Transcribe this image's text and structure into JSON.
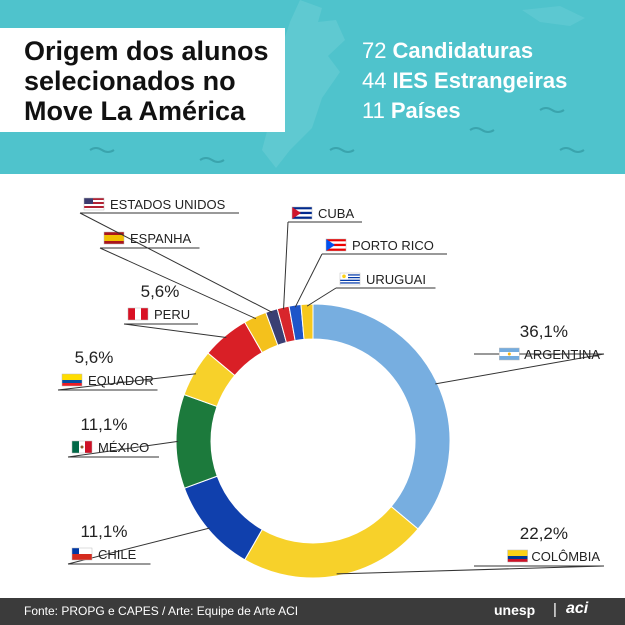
{
  "header": {
    "title_lines": [
      "Origem dos alunos",
      "selecionados no",
      "Move La América"
    ],
    "stats": [
      {
        "number": "72",
        "label": "Candidaturas"
      },
      {
        "number": "44",
        "label": "IES Estrangeiras"
      },
      {
        "number": "11",
        "label": "Países"
      }
    ]
  },
  "footer": {
    "source": "Fonte: PROPG e CAPES / Arte: Equipe de Arte ACI",
    "logo_unesp": "unesp",
    "logo_separator": "|",
    "logo_aci": "aci"
  },
  "chart_data": {
    "type": "pie",
    "style": "donut",
    "slices": [
      {
        "label": "ARGENTINA",
        "value": 36.1,
        "value_label": "36,1%",
        "color": "#77aee0",
        "flag": "argentina"
      },
      {
        "label": "COLÔMBIA",
        "value": 22.2,
        "value_label": "22,2%",
        "color": "#f7d12a",
        "flag": "colombia"
      },
      {
        "label": "CHILE",
        "value": 11.1,
        "value_label": "11,1%",
        "color": "#1040ad",
        "flag": "chile"
      },
      {
        "label": "MÉXICO",
        "value": 11.1,
        "value_label": "11,1%",
        "color": "#1c7a3c",
        "flag": "mexico"
      },
      {
        "label": "EQUADOR",
        "value": 5.6,
        "value_label": "5,6%",
        "color": "#f7d12a",
        "flag": "ecuador"
      },
      {
        "label": "PERU",
        "value": 5.6,
        "value_label": "5,6%",
        "color": "#d91f26",
        "flag": "peru"
      },
      {
        "label": "ESPANHA",
        "value": 2.7,
        "value_label": "",
        "color": "#f4c11c",
        "flag": "spain"
      },
      {
        "label": "ESTADOS UNIDOS",
        "value": 1.4,
        "value_label": "",
        "color": "#3a3f73",
        "flag": "usa"
      },
      {
        "label": "CUBA",
        "value": 1.4,
        "value_label": "",
        "color": "#d8262c",
        "flag": "cuba"
      },
      {
        "label": "PORTO RICO",
        "value": 1.4,
        "value_label": "",
        "color": "#1e55c9",
        "flag": "puerto-rico"
      },
      {
        "label": "URUGUAI",
        "value": 1.4,
        "value_label": "",
        "color": "#f6c81e",
        "flag": "uruguay"
      }
    ],
    "legend": "callouts"
  }
}
